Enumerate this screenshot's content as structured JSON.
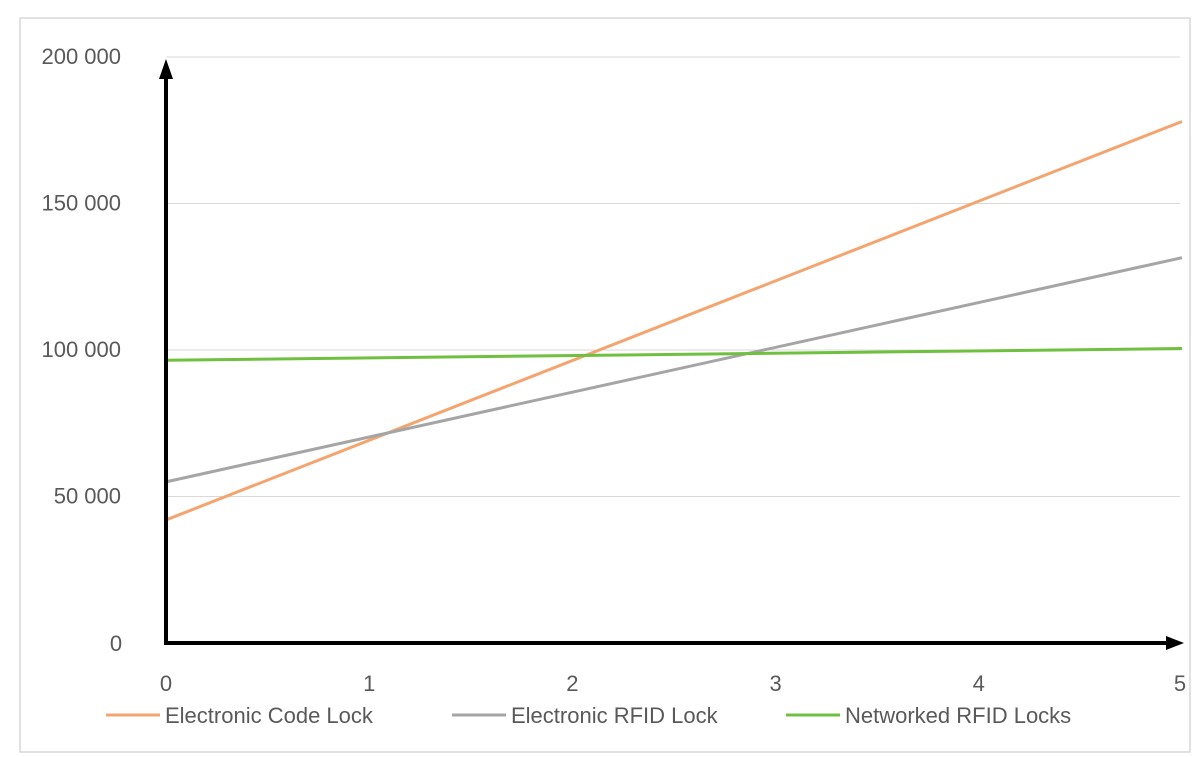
{
  "chart_data": {
    "type": "line",
    "title": "",
    "xlabel": "",
    "ylabel": "",
    "xlim": [
      0,
      5
    ],
    "ylim": [
      0,
      200000
    ],
    "x_ticks": [
      0,
      1,
      2,
      3,
      4,
      5
    ],
    "x_tick_labels": [
      "0",
      "1",
      "2",
      "3",
      "4",
      "5"
    ],
    "y_ticks": [
      0,
      50000,
      100000,
      150000,
      200000
    ],
    "y_tick_labels": [
      "0",
      "50 000",
      "100 000",
      "150 000",
      "200 000"
    ],
    "grid": "horizontal",
    "legend_position": "bottom",
    "x": [
      0,
      5
    ],
    "series": [
      {
        "name": "Electronic Code Lock",
        "color": "#f4a46f",
        "values": [
          42000,
          178000
        ]
      },
      {
        "name": "Electronic RFID Lock",
        "color": "#a5a5a5",
        "values": [
          55000,
          131500
        ]
      },
      {
        "name": "Networked RFID Locks",
        "color": "#70c040",
        "values": [
          96500,
          100500
        ]
      }
    ]
  }
}
